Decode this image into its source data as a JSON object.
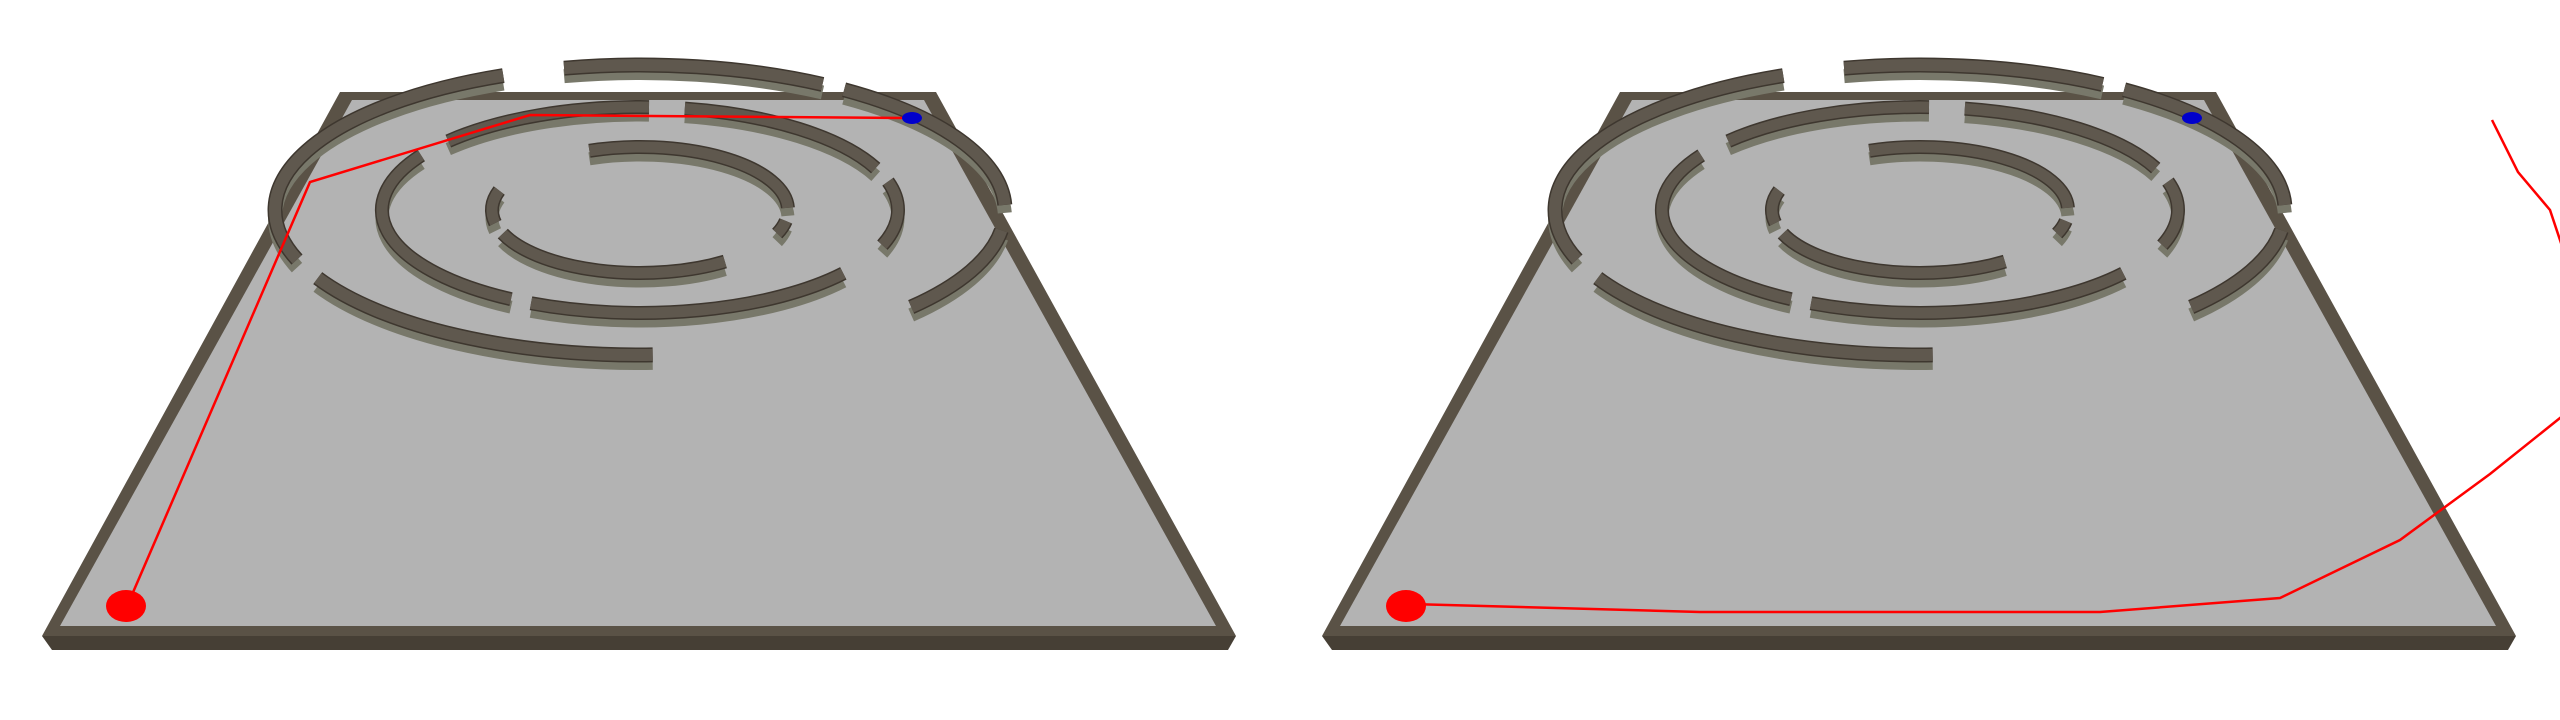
{
  "scenes": [
    {
      "id": "left",
      "path_route": "outer-top-left",
      "colors": {
        "start_marker": "#ff0000",
        "goal_marker": "#0000cc",
        "path": "#ff0000"
      }
    },
    {
      "id": "right",
      "path_route": "outer-right-bottom",
      "colors": {
        "start_marker": "#ff0000",
        "goal_marker": "#0000cc",
        "path": "#ff0000"
      }
    }
  ],
  "colors": {
    "floor": "#b3b3b3",
    "border": "#5a5246",
    "wall_top": "#5f584e",
    "wall_side": "#78786a",
    "wall_dark": "#3e372f"
  }
}
